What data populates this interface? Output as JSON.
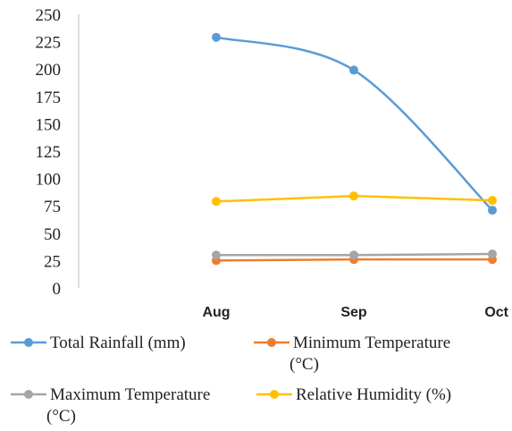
{
  "chart_data": {
    "type": "line",
    "categories": [
      "Aug",
      "Sep",
      "Oct"
    ],
    "ylim": [
      0,
      250
    ],
    "yticks": [
      0,
      25,
      50,
      75,
      100,
      125,
      150,
      175,
      200,
      225,
      250
    ],
    "grid": false,
    "legend_position": "bottom",
    "series": [
      {
        "name": "Total Rainfall (mm)",
        "values": [
          229,
          199,
          71
        ],
        "color": "#5B9BD5",
        "smooth": true
      },
      {
        "name": "Minimum Temperature (°C)",
        "values": [
          25,
          26,
          26
        ],
        "color": "#ED7D31",
        "smooth": false
      },
      {
        "name": "Maximum Temperature (°C)",
        "values": [
          30,
          30,
          31
        ],
        "color": "#A5A5A5",
        "smooth": false
      },
      {
        "name": "Relative Humidity (%)",
        "values": [
          79,
          84,
          80
        ],
        "color": "#FFC000",
        "smooth": false
      }
    ],
    "legend": [
      {
        "lines": [
          "Total Rainfall (mm)"
        ]
      },
      {
        "lines": [
          "Minimum Temperature",
          "(°C)"
        ]
      },
      {
        "lines": [
          "Maximum Temperature",
          "(°C)"
        ]
      },
      {
        "lines": [
          "Relative Humidity (%)"
        ]
      }
    ]
  }
}
